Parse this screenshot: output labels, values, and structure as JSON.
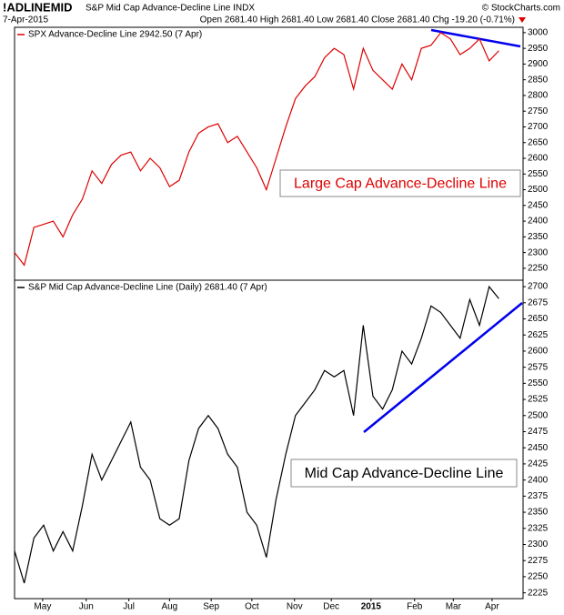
{
  "header": {
    "symbol": "!ADLINEMID",
    "name": "S&P Mid Cap Advance-Decline Line INDX",
    "credit": "© StockCharts.com",
    "date": "7-Apr-2015",
    "quote": "Open 2681.40 High 2681.40 Low 2681.40 Close 2681.40 Chg -19.20 (-0.71%)"
  },
  "chart_data": [
    {
      "type": "line",
      "annotation": "Large Cap Advance-Decline Line",
      "series": [
        {
          "name": "SPX Advance-Decline Line 2942.50 (7 Apr)",
          "color": "#dd0000",
          "values": [
            2300,
            2260,
            2380,
            2390,
            2400,
            2350,
            2420,
            2470,
            2560,
            2520,
            2580,
            2610,
            2620,
            2560,
            2600,
            2570,
            2510,
            2530,
            2620,
            2680,
            2700,
            2710,
            2650,
            2670,
            2620,
            2570,
            2500,
            2600,
            2700,
            2790,
            2830,
            2860,
            2920,
            2950,
            2930,
            2820,
            2950,
            2880,
            2850,
            2820,
            2900,
            2850,
            2950,
            2960,
            3000,
            2980,
            2930,
            2950,
            2980,
            2910,
            2942.5
          ]
        }
      ],
      "xlim": [
        0,
        52.5
      ],
      "ylim": [
        2212,
        3017
      ],
      "yticks": [
        2250,
        2300,
        2350,
        2400,
        2450,
        2500,
        2550,
        2600,
        2650,
        2700,
        2750,
        2800,
        2850,
        2900,
        2950,
        3000
      ]
    },
    {
      "type": "line",
      "annotation": "Mid Cap Advance-Decline Line",
      "series": [
        {
          "name": "S&P Mid Cap Advance-Decline Line (Daily) 2681.40 (7 Apr)",
          "color": "#000000",
          "values": [
            2290,
            2240,
            2310,
            2330,
            2290,
            2320,
            2290,
            2360,
            2440,
            2400,
            2430,
            2460,
            2490,
            2420,
            2400,
            2340,
            2330,
            2340,
            2430,
            2480,
            2500,
            2480,
            2440,
            2420,
            2350,
            2330,
            2280,
            2370,
            2440,
            2500,
            2520,
            2540,
            2570,
            2560,
            2570,
            2500,
            2640,
            2530,
            2510,
            2540,
            2600,
            2580,
            2620,
            2670,
            2660,
            2640,
            2620,
            2680,
            2640,
            2700,
            2681.4
          ]
        }
      ],
      "xlim": [
        0,
        52.5
      ],
      "ylim": [
        2216,
        2710
      ],
      "yticks": [
        2225,
        2250,
        2275,
        2300,
        2325,
        2350,
        2375,
        2400,
        2425,
        2450,
        2475,
        2500,
        2525,
        2550,
        2575,
        2600,
        2625,
        2650,
        2675,
        2700
      ],
      "xticks": [
        {
          "value": 2.9,
          "label": "May"
        },
        {
          "value": 7.4,
          "label": "Jun"
        },
        {
          "value": 11.8,
          "label": "Jul"
        },
        {
          "value": 16,
          "label": "Aug"
        },
        {
          "value": 20.3,
          "label": "Sep"
        },
        {
          "value": 24.5,
          "label": "Oct"
        },
        {
          "value": 28.9,
          "label": "Nov"
        },
        {
          "value": 32.7,
          "label": "Dec"
        },
        {
          "value": 36.8,
          "label": "2015"
        },
        {
          "value": 41.3,
          "label": "Feb"
        },
        {
          "value": 45.3,
          "label": "Mar"
        },
        {
          "value": 49.3,
          "label": "Apr"
        }
      ]
    }
  ]
}
